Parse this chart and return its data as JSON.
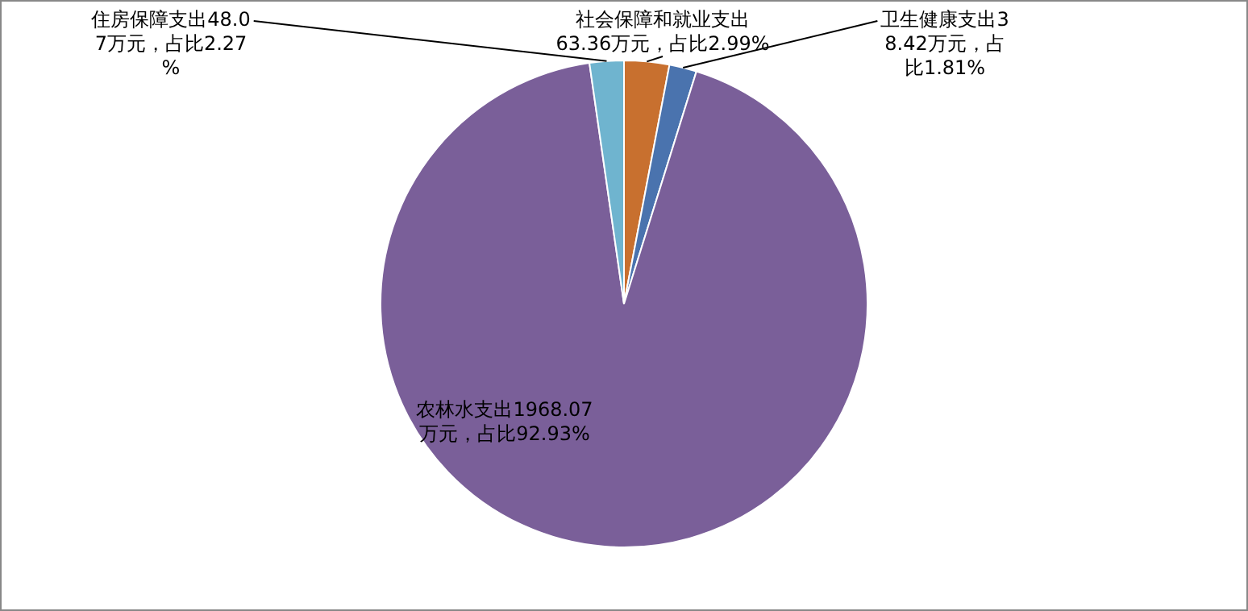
{
  "chart_data": {
    "type": "pie",
    "categories": [
      "社会保障和就业支出",
      "卫生健康支出",
      "农林水支出",
      "住房保障支出"
    ],
    "values": [
      63.36,
      38.42,
      1968.07,
      48.07
    ],
    "colors": [
      "#c8702f",
      "#4a73ae",
      "#7a5f99",
      "#6fb4cf"
    ],
    "value_labels": [
      "63.36万元，占比2.99%",
      "38.42万元，占比1.81%",
      "1968.07万元，占比92.93%",
      "48.07万元，占比2.27%"
    ],
    "legend": false
  }
}
